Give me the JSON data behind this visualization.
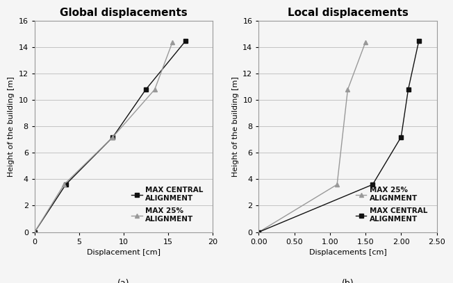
{
  "left": {
    "title": "Global displacements",
    "xlabel": "Displacement [cm]",
    "ylabel": "Height of the building [m]",
    "xlim": [
      0,
      20
    ],
    "ylim": [
      0,
      16
    ],
    "xticks": [
      0,
      5,
      10,
      15,
      20
    ],
    "yticks": [
      0,
      2,
      4,
      6,
      8,
      10,
      12,
      14,
      16
    ],
    "series": [
      {
        "label": "MAX CENTRAL\nALIGNMENT",
        "x": [
          0,
          3.5,
          8.8,
          12.5,
          17.0
        ],
        "y": [
          0,
          3.6,
          7.2,
          10.8,
          14.5
        ],
        "color": "#111111",
        "marker": "s",
        "linestyle": "-"
      },
      {
        "label": "MAX 25%\nALIGNMENT",
        "x": [
          0,
          3.3,
          8.8,
          13.5,
          15.5
        ],
        "y": [
          0,
          3.6,
          7.2,
          10.8,
          14.4
        ],
        "color": "#999999",
        "marker": "^",
        "linestyle": "-"
      }
    ]
  },
  "right": {
    "title": "Local displacements",
    "xlabel": "Displacements [cm]",
    "ylabel": "Height of the building [m]",
    "xlim": [
      0.0,
      2.5
    ],
    "ylim": [
      0,
      16
    ],
    "xticks": [
      0.0,
      0.5,
      1.0,
      1.5,
      2.0,
      2.5
    ],
    "yticks": [
      0,
      2,
      4,
      6,
      8,
      10,
      12,
      14,
      16
    ],
    "series": [
      {
        "label": "MAX 25%\nALIGNMENT",
        "x": [
          0,
          1.1,
          1.25,
          1.5
        ],
        "y": [
          0,
          3.6,
          10.8,
          14.4
        ],
        "color": "#999999",
        "marker": "^",
        "linestyle": "-"
      },
      {
        "label": "MAX CENTRAL\nALIGNMENT",
        "x": [
          0,
          1.6,
          2.0,
          2.1,
          2.25
        ],
        "y": [
          0,
          3.6,
          7.2,
          10.8,
          14.5
        ],
        "color": "#111111",
        "marker": "s",
        "linestyle": "-"
      }
    ]
  },
  "subtitle_left": "(a)",
  "subtitle_right": "(b)",
  "bg_color": "#f5f5f5",
  "plot_bg": "#f5f5f5",
  "grid_color": "#bbbbbb",
  "title_fontsize": 11,
  "label_fontsize": 8,
  "tick_fontsize": 8,
  "legend_fontsize": 7.5,
  "marker_size": 5,
  "line_width": 1.0
}
